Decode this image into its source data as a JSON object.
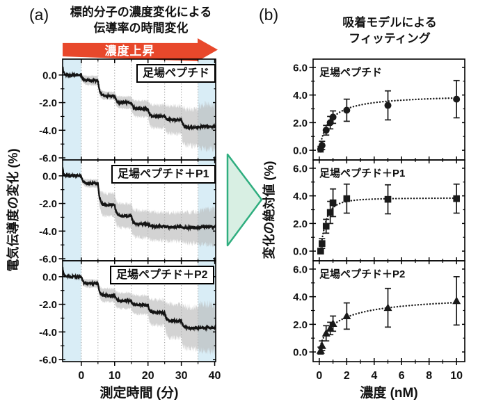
{
  "panel_a": {
    "label": "(a)",
    "title_line1": "標的分子の濃度変化による",
    "title_line2": "伝導率の時間変化",
    "arrow_label": "濃度上昇",
    "xlabel": "測定時間 (分)",
    "ylabel": "電気伝導度の変化 (%)"
  },
  "panel_b": {
    "label": "(b)",
    "title_line1": "吸着モデルによる",
    "title_line2": "フィッティング",
    "xlabel": "濃度 (nM)",
    "ylabel": "変化の絶対値 (%)"
  },
  "colors": {
    "trace": "#141414",
    "band": "#b5b5b5",
    "shade_blue": "#d9edf6",
    "grid": "#9b9b9b",
    "frame": "#000000",
    "marker": "#1a1a1a",
    "red_arrow": "#e8482b",
    "green_arrow_fill": "#d8efe3",
    "green_arrow_stroke": "#2fae7f"
  },
  "chart_data": [
    {
      "type": "line",
      "panel": "a",
      "title": "標的分子の濃度変化による伝導率の時間変化",
      "xlabel": "測定時間 (分)",
      "ylabel": "電気伝導度の変化 (%)",
      "xlim": [
        -5.6,
        40.3
      ],
      "ylim": [
        -6.15,
        1.15
      ],
      "x_ticks_major": [
        0,
        10,
        20,
        30,
        40
      ],
      "x_ticks_minor": [
        5,
        15,
        25,
        35
      ],
      "y_ticks_major": [
        0,
        -2,
        -4,
        -6
      ],
      "y_ticks_minor": [
        -1,
        -3,
        -5
      ],
      "grid_x": [
        0,
        5,
        10,
        15,
        20,
        25,
        30,
        35
      ],
      "shaded_x": [
        [
          -5.6,
          0
        ],
        [
          35,
          40.3
        ]
      ],
      "step_times": [
        0,
        5,
        10,
        15,
        20,
        25,
        30,
        35
      ],
      "grid_on": true,
      "legend_position": "none",
      "subplots": [
        {
          "label": "足場ペプチド",
          "step_levels": [
            0,
            -0.4,
            -1.5,
            -2.0,
            -2.45,
            -3.0,
            -3.25,
            -3.8,
            -3.75
          ],
          "band_halfwidth": [
            0.07,
            0.35,
            0.3,
            0.45,
            0.6,
            0.85,
            1.05,
            1.35,
            1.65
          ]
        },
        {
          "label": "足場ペプチド＋P1",
          "step_levels": [
            0,
            -0.55,
            -2.1,
            -2.9,
            -3.5,
            -3.65,
            -3.7,
            -3.75,
            -3.7
          ],
          "band_halfwidth": [
            0.07,
            0.3,
            0.85,
            0.9,
            1.0,
            1.05,
            1.05,
            1.15,
            1.3
          ]
        },
        {
          "label": "足場ペプチド＋P2",
          "step_levels": [
            0,
            -0.5,
            -1.35,
            -1.75,
            -2.05,
            -2.6,
            -3.2,
            -3.7,
            -3.7
          ],
          "band_halfwidth": [
            0.07,
            0.3,
            0.5,
            0.6,
            0.7,
            0.95,
            1.25,
            1.55,
            1.75
          ]
        }
      ]
    },
    {
      "type": "scatter",
      "panel": "b",
      "title": "吸着モデルによるフィッティング",
      "xlabel": "濃度 (nM)",
      "ylabel": "変化の絶対値 (%)",
      "xlim": [
        -0.45,
        10.6
      ],
      "ylim": [
        -0.7,
        6.6
      ],
      "x_ticks_major": [
        0,
        2,
        4,
        6,
        8,
        10
      ],
      "x_ticks_minor": [
        1,
        3,
        5,
        7,
        9
      ],
      "y_ticks_major": [
        0,
        2,
        4,
        6
      ],
      "y_ticks_minor": [
        1,
        3,
        5
      ],
      "x": [
        0.1,
        0.2,
        0.5,
        0.8,
        1,
        2,
        5,
        10
      ],
      "fit_style": "dotted",
      "legend_position": "none",
      "subplots": [
        {
          "label": "足場ペプチド",
          "marker": "circle",
          "y": [
            0.08,
            0.35,
            1.45,
            2.0,
            2.4,
            2.9,
            3.25,
            3.7
          ],
          "yerr": [
            0.2,
            0.3,
            0.35,
            0.45,
            0.45,
            0.8,
            1.05,
            1.35
          ],
          "fit": {
            "A": 4.05,
            "K": 0.7,
            "n": 1.0
          }
        },
        {
          "label": "足場ペプチド＋P1",
          "marker": "square",
          "y": [
            0.0,
            0.55,
            1.8,
            2.8,
            3.5,
            3.8,
            3.75,
            3.8
          ],
          "yerr": [
            0.15,
            0.35,
            0.5,
            0.8,
            1.0,
            1.05,
            1.05,
            1.05
          ],
          "fit": {
            "A": 3.85,
            "K": 0.42,
            "n": 1.7
          }
        },
        {
          "label": "足場ペプチド＋P2",
          "marker": "triangle",
          "y": [
            0.1,
            0.45,
            1.35,
            1.7,
            2.05,
            2.6,
            3.2,
            3.7
          ],
          "yerr": [
            0.25,
            0.35,
            0.55,
            0.45,
            0.55,
            0.95,
            1.4,
            1.75
          ],
          "fit": {
            "A": 4.25,
            "K": 1.25,
            "n": 0.8
          }
        }
      ]
    }
  ]
}
